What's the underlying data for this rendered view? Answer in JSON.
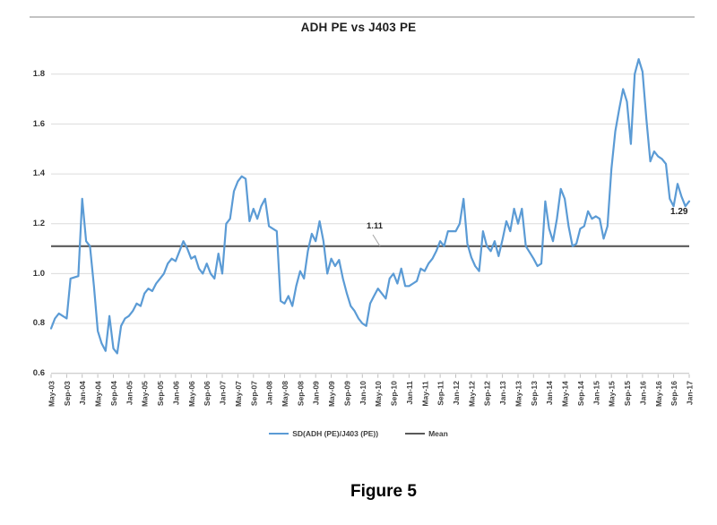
{
  "title": "ADH PE vs J403 PE",
  "figure_caption": "Figure 5",
  "annotations": {
    "mean_label": "1.11",
    "last_value_label": "1.29"
  },
  "legend": {
    "series_label": "SD(ADH (PE)/J403 (PE))",
    "mean_label": "Mean"
  },
  "colors": {
    "series": "#5b9bd5",
    "mean_line": "#595959",
    "gridline": "#dcdcdc",
    "axis": "#bfbfbf",
    "tick_label": "#3f3f3f",
    "leader": "#a6a6a6"
  },
  "chart_data": {
    "type": "line",
    "title": "ADH PE vs J403 PE",
    "xlabel": "",
    "ylabel": "",
    "ylim": [
      0.6,
      1.9
    ],
    "ytick_labels": [
      "1.8",
      "1.6",
      "1.4",
      "1.2",
      "1.0",
      "0.8",
      "0.6"
    ],
    "yticks": [
      1.8,
      1.6,
      1.4,
      1.2,
      1.0,
      0.8,
      0.6
    ],
    "grid": "horizontal",
    "legend_position": "bottom",
    "x_frequency": "monthly",
    "tick_every": 4,
    "x_tick_labels": [
      "May-03",
      "Sep-03",
      "Jan-04",
      "May-04",
      "Sep-04",
      "Jan-05",
      "May-05",
      "Sep-05",
      "Jan-06",
      "May-06",
      "Sep-06",
      "Jan-07",
      "May-07",
      "Sep-07",
      "Jan-08",
      "May-08",
      "Sep-08",
      "Jan-09",
      "May-09",
      "Sep-09",
      "Jan-10",
      "May-10",
      "Sep-10",
      "Jan-11",
      "May-11",
      "Sep-11",
      "Jan-12",
      "May-12",
      "Sep-12",
      "Jan-13",
      "May-13",
      "Sep-13",
      "Jan-14",
      "May-14",
      "Sep-14",
      "Jan-15",
      "May-15",
      "Sep-15",
      "Jan-16",
      "May-16",
      "Sep-16",
      "Jan-17"
    ],
    "mean_value": 1.11,
    "last_value": 1.29,
    "series": [
      {
        "name": "SD(ADH (PE)/J403 (PE))",
        "values": [
          0.78,
          0.82,
          0.84,
          0.83,
          0.82,
          0.98,
          0.985,
          0.99,
          1.3,
          1.13,
          1.11,
          0.95,
          0.77,
          0.72,
          0.69,
          0.83,
          0.7,
          0.68,
          0.79,
          0.82,
          0.83,
          0.85,
          0.88,
          0.87,
          0.92,
          0.94,
          0.93,
          0.96,
          0.98,
          1.0,
          1.04,
          1.06,
          1.05,
          1.09,
          1.13,
          1.1,
          1.06,
          1.07,
          1.02,
          1.0,
          1.04,
          1.0,
          0.98,
          1.08,
          1.0,
          1.2,
          1.22,
          1.33,
          1.37,
          1.39,
          1.38,
          1.21,
          1.26,
          1.22,
          1.27,
          1.3,
          1.19,
          1.18,
          1.17,
          0.89,
          0.88,
          0.91,
          0.87,
          0.95,
          1.01,
          0.98,
          1.09,
          1.16,
          1.13,
          1.21,
          1.13,
          1.0,
          1.06,
          1.03,
          1.055,
          0.98,
          0.92,
          0.87,
          0.85,
          0.82,
          0.8,
          0.79,
          0.88,
          0.91,
          0.94,
          0.92,
          0.9,
          0.98,
          1.0,
          0.96,
          1.02,
          0.95,
          0.95,
          0.96,
          0.97,
          1.02,
          1.01,
          1.04,
          1.06,
          1.09,
          1.13,
          1.11,
          1.17,
          1.17,
          1.17,
          1.2,
          1.3,
          1.12,
          1.065,
          1.03,
          1.01,
          1.17,
          1.11,
          1.09,
          1.13,
          1.07,
          1.135,
          1.21,
          1.17,
          1.26,
          1.2,
          1.26,
          1.11,
          1.085,
          1.06,
          1.03,
          1.04,
          1.29,
          1.18,
          1.13,
          1.22,
          1.34,
          1.3,
          1.19,
          1.11,
          1.12,
          1.18,
          1.19,
          1.25,
          1.22,
          1.23,
          1.22,
          1.14,
          1.19,
          1.42,
          1.57,
          1.66,
          1.74,
          1.69,
          1.52,
          1.8,
          1.86,
          1.81,
          1.62,
          1.45,
          1.49,
          1.47,
          1.46,
          1.44,
          1.3,
          1.27,
          1.36,
          1.31,
          1.27,
          1.29
        ]
      },
      {
        "name": "Mean",
        "constant": 1.11
      }
    ]
  }
}
